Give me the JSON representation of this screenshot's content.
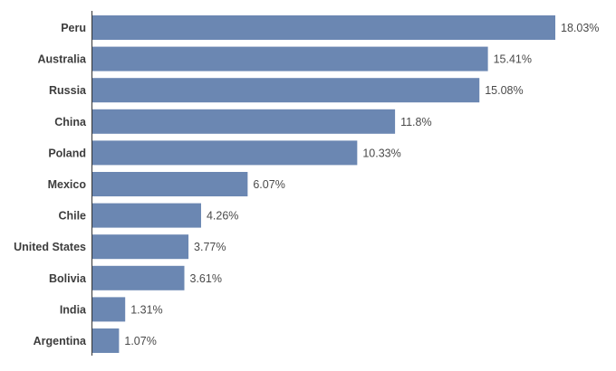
{
  "chart_data": {
    "type": "bar",
    "orientation": "horizontal",
    "categories": [
      "Peru",
      "Australia",
      "Russia",
      "China",
      "Poland",
      "Mexico",
      "Chile",
      "United States",
      "Bolivia",
      "India",
      "Argentina"
    ],
    "values": [
      18.03,
      15.41,
      15.08,
      11.8,
      10.33,
      6.07,
      4.26,
      3.77,
      3.61,
      1.31,
      1.07
    ],
    "value_labels": [
      "18.03%",
      "15.41%",
      "15.08%",
      "11.8%",
      "10.33%",
      "6.07%",
      "4.26%",
      "3.77%",
      "3.61%",
      "1.31%",
      "1.07%"
    ],
    "title": "",
    "xlabel": "",
    "ylabel": "",
    "xlim": [
      0,
      18.03
    ],
    "grid": false,
    "legend": "none",
    "bar_color": "#6b87b2"
  }
}
